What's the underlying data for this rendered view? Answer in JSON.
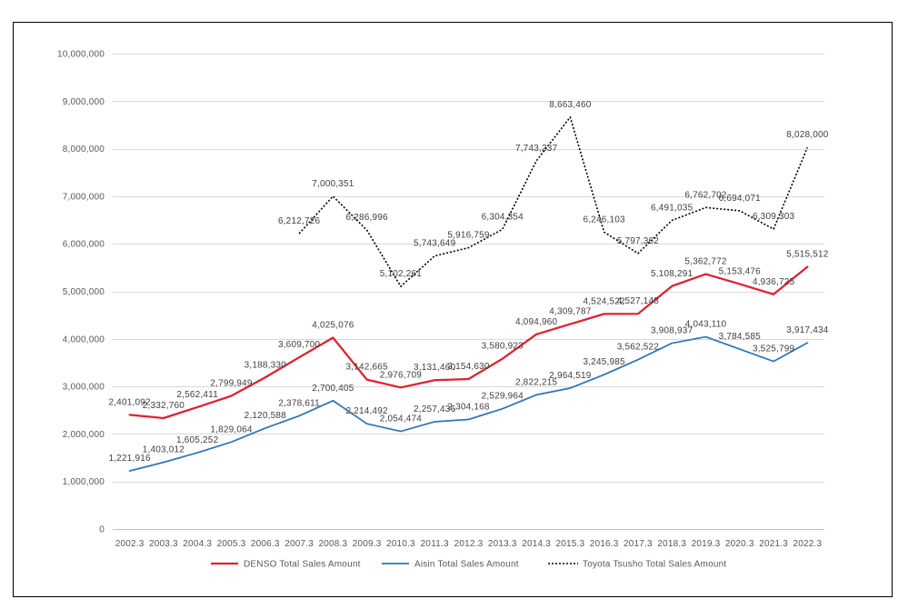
{
  "chart_data": {
    "type": "line",
    "categories": [
      "2002.3",
      "2003.3",
      "2004.3",
      "2005.3",
      "2006.3",
      "2007.3",
      "2008.3",
      "2009.3",
      "2010.3",
      "2011.3",
      "2012.3",
      "2013.3",
      "2014.3",
      "2015.3",
      "2016.3",
      "2017.3",
      "2018.3",
      "2019.3",
      "2020.3",
      "2021.3",
      "2022.3"
    ],
    "series": [
      {
        "name": "DENSO Total Sales Amount",
        "color": "#E0202E",
        "line_style": "solid",
        "values": [
          2401092,
          2332760,
          2562411,
          2799949,
          3188330,
          3609700,
          4025076,
          3142665,
          2976709,
          3131460,
          3154630,
          3580923,
          4094960,
          4309787,
          4524522,
          4527148,
          5108291,
          5362772,
          5153476,
          4936725,
          5515512
        ]
      },
      {
        "name": "Aisin Total Sales Amount",
        "color": "#2E75B6",
        "line_style": "solid",
        "values": [
          1221916,
          1403012,
          1605252,
          1829064,
          2120588,
          2378611,
          2700405,
          2214492,
          2054474,
          2257436,
          2304168,
          2529964,
          2822215,
          2964519,
          3245985,
          3562522,
          3908937,
          4043110,
          3784585,
          3525799,
          3917434
        ]
      },
      {
        "name": "Toyota Tsusho Total Sales Amount",
        "color": "#000000",
        "line_style": "dotted",
        "values": [
          null,
          null,
          null,
          null,
          null,
          6212726,
          7000351,
          6286996,
          5102261,
          5743649,
          5916759,
          6304354,
          7743237,
          8663460,
          6246103,
          5797362,
          6491035,
          6762702,
          6694071,
          6309303,
          8028000
        ]
      }
    ],
    "ylim": [
      0,
      10000000
    ],
    "yticks": [
      0,
      1000000,
      2000000,
      3000000,
      4000000,
      5000000,
      6000000,
      7000000,
      8000000,
      9000000,
      10000000
    ],
    "grid": true,
    "data_labels": true,
    "legend": "bottom"
  }
}
